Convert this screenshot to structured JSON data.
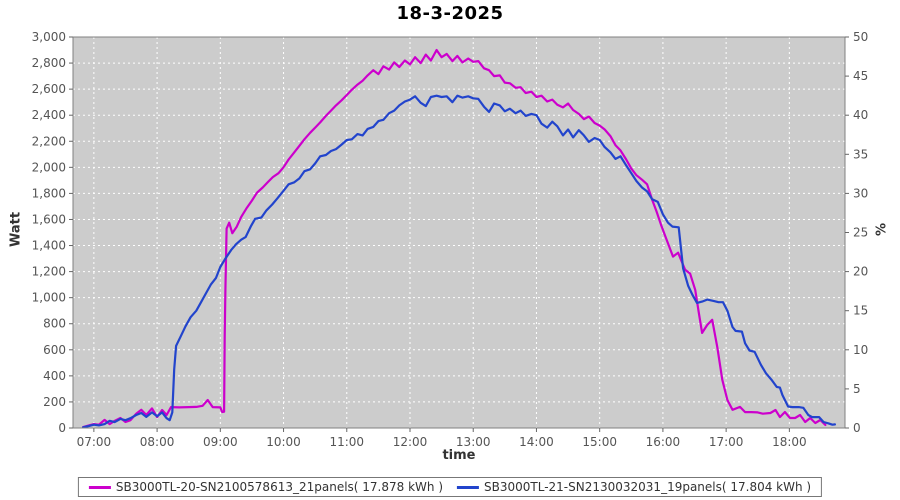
{
  "page": {
    "title": "18-3-2025"
  },
  "chart_data": {
    "type": "line",
    "title": "18-3-2025",
    "xlabel": "time",
    "ylabel_left": "Watt",
    "ylabel_right": "%",
    "xlim_hours": [
      6.67,
      18.88
    ],
    "ylim_left": [
      0,
      3000
    ],
    "ylim_right": [
      0,
      50
    ],
    "y_left_tick_step": 200,
    "y_right_tick_step": 5,
    "grid": true,
    "legend_position": "bottom",
    "plot_bg": "#cccccc",
    "grid_color": "#ffffff",
    "border_color": "#808080",
    "tick_color": "#666666",
    "tick_label_color": "#555555",
    "x_ticks": [
      {
        "hour": 7,
        "label": "07:00"
      },
      {
        "hour": 8,
        "label": "08:00"
      },
      {
        "hour": 9,
        "label": "09:00"
      },
      {
        "hour": 10,
        "label": "10:00"
      },
      {
        "hour": 11,
        "label": "11:00"
      },
      {
        "hour": 12,
        "label": "12:00"
      },
      {
        "hour": 13,
        "label": "13:00"
      },
      {
        "hour": 14,
        "label": "14:00"
      },
      {
        "hour": 15,
        "label": "15:00"
      },
      {
        "hour": 16,
        "label": "16:00"
      },
      {
        "hour": 17,
        "label": "17:00"
      },
      {
        "hour": 18,
        "label": "18:00"
      }
    ],
    "series": [
      {
        "name": "SB3000TL-20-SN2100578613_21panels( 17.878 kWh )",
        "color": "#cc00cc",
        "points": [
          [
            6.83,
            8
          ],
          [
            6.92,
            20
          ],
          [
            7.0,
            30
          ],
          [
            7.08,
            25
          ],
          [
            7.17,
            62
          ],
          [
            7.25,
            30
          ],
          [
            7.33,
            55
          ],
          [
            7.42,
            77
          ],
          [
            7.5,
            46
          ],
          [
            7.58,
            60
          ],
          [
            7.67,
            110
          ],
          [
            7.75,
            140
          ],
          [
            7.83,
            100
          ],
          [
            7.92,
            150
          ],
          [
            8.0,
            84
          ],
          [
            8.08,
            138
          ],
          [
            8.15,
            100
          ],
          [
            8.22,
            160
          ],
          [
            8.35,
            158
          ],
          [
            8.5,
            160
          ],
          [
            8.62,
            162
          ],
          [
            8.72,
            170
          ],
          [
            8.8,
            215
          ],
          [
            8.88,
            160
          ],
          [
            9.0,
            158
          ],
          [
            9.03,
            123
          ],
          [
            9.06,
            125
          ],
          [
            9.07,
            700
          ],
          [
            9.08,
            1060
          ],
          [
            9.1,
            1530
          ],
          [
            9.14,
            1575
          ],
          [
            9.19,
            1495
          ],
          [
            9.26,
            1545
          ],
          [
            9.33,
            1620
          ],
          [
            9.42,
            1690
          ],
          [
            9.5,
            1745
          ],
          [
            9.58,
            1805
          ],
          [
            9.67,
            1845
          ],
          [
            9.75,
            1885
          ],
          [
            9.83,
            1925
          ],
          [
            9.92,
            1955
          ],
          [
            10.0,
            2000
          ],
          [
            10.08,
            2060
          ],
          [
            10.17,
            2115
          ],
          [
            10.25,
            2165
          ],
          [
            10.33,
            2215
          ],
          [
            10.42,
            2265
          ],
          [
            10.5,
            2305
          ],
          [
            10.58,
            2345
          ],
          [
            10.67,
            2395
          ],
          [
            10.75,
            2435
          ],
          [
            10.83,
            2475
          ],
          [
            10.92,
            2515
          ],
          [
            11.0,
            2555
          ],
          [
            11.08,
            2595
          ],
          [
            11.17,
            2635
          ],
          [
            11.25,
            2665
          ],
          [
            11.33,
            2705
          ],
          [
            11.42,
            2745
          ],
          [
            11.5,
            2715
          ],
          [
            11.58,
            2775
          ],
          [
            11.67,
            2750
          ],
          [
            11.75,
            2805
          ],
          [
            11.83,
            2770
          ],
          [
            11.92,
            2820
          ],
          [
            12.0,
            2790
          ],
          [
            12.08,
            2845
          ],
          [
            12.17,
            2800
          ],
          [
            12.25,
            2865
          ],
          [
            12.33,
            2820
          ],
          [
            12.42,
            2900
          ],
          [
            12.5,
            2845
          ],
          [
            12.58,
            2870
          ],
          [
            12.67,
            2815
          ],
          [
            12.75,
            2855
          ],
          [
            12.83,
            2805
          ],
          [
            12.92,
            2835
          ],
          [
            13.0,
            2810
          ],
          [
            13.08,
            2815
          ],
          [
            13.17,
            2760
          ],
          [
            13.25,
            2745
          ],
          [
            13.33,
            2700
          ],
          [
            13.42,
            2705
          ],
          [
            13.5,
            2650
          ],
          [
            13.58,
            2645
          ],
          [
            13.67,
            2610
          ],
          [
            13.75,
            2615
          ],
          [
            13.83,
            2570
          ],
          [
            13.92,
            2580
          ],
          [
            14.0,
            2540
          ],
          [
            14.08,
            2550
          ],
          [
            14.17,
            2505
          ],
          [
            14.25,
            2520
          ],
          [
            14.33,
            2480
          ],
          [
            14.42,
            2460
          ],
          [
            14.5,
            2490
          ],
          [
            14.58,
            2440
          ],
          [
            14.67,
            2410
          ],
          [
            14.75,
            2370
          ],
          [
            14.83,
            2390
          ],
          [
            14.92,
            2340
          ],
          [
            15.0,
            2320
          ],
          [
            15.08,
            2290
          ],
          [
            15.17,
            2240
          ],
          [
            15.25,
            2170
          ],
          [
            15.33,
            2130
          ],
          [
            15.42,
            2060
          ],
          [
            15.5,
            1990
          ],
          [
            15.58,
            1940
          ],
          [
            15.67,
            1905
          ],
          [
            15.75,
            1870
          ],
          [
            15.83,
            1750
          ],
          [
            15.9,
            1660
          ],
          [
            15.97,
            1560
          ],
          [
            16.05,
            1455
          ],
          [
            16.16,
            1315
          ],
          [
            16.24,
            1345
          ],
          [
            16.35,
            1215
          ],
          [
            16.43,
            1185
          ],
          [
            16.51,
            1060
          ],
          [
            16.57,
            880
          ],
          [
            16.62,
            730
          ],
          [
            16.7,
            790
          ],
          [
            16.78,
            830
          ],
          [
            16.86,
            620
          ],
          [
            16.94,
            370
          ],
          [
            17.02,
            215
          ],
          [
            17.1,
            140
          ],
          [
            17.22,
            162
          ],
          [
            17.3,
            122
          ],
          [
            17.4,
            122
          ],
          [
            17.5,
            120
          ],
          [
            17.58,
            110
          ],
          [
            17.7,
            115
          ],
          [
            17.78,
            138
          ],
          [
            17.85,
            84
          ],
          [
            17.93,
            123
          ],
          [
            18.01,
            77
          ],
          [
            18.09,
            77
          ],
          [
            18.17,
            100
          ],
          [
            18.25,
            46
          ],
          [
            18.33,
            77
          ],
          [
            18.41,
            38
          ],
          [
            18.49,
            61
          ],
          [
            18.57,
            23
          ]
        ]
      },
      {
        "name": "SB3000TL-21-SN2130032031_19panels( 17.804 kWh )",
        "color": "#2244cc",
        "points": [
          [
            6.83,
            5
          ],
          [
            6.92,
            15
          ],
          [
            7.0,
            25
          ],
          [
            7.08,
            20
          ],
          [
            7.17,
            30
          ],
          [
            7.25,
            55
          ],
          [
            7.33,
            45
          ],
          [
            7.42,
            70
          ],
          [
            7.5,
            60
          ],
          [
            7.58,
            75
          ],
          [
            7.67,
            100
          ],
          [
            7.75,
            115
          ],
          [
            7.83,
            85
          ],
          [
            7.92,
            120
          ],
          [
            8.0,
            90
          ],
          [
            8.08,
            120
          ],
          [
            8.15,
            75
          ],
          [
            8.2,
            60
          ],
          [
            8.24,
            120
          ],
          [
            8.27,
            450
          ],
          [
            8.3,
            630
          ],
          [
            8.37,
            700
          ],
          [
            8.45,
            780
          ],
          [
            8.53,
            850
          ],
          [
            8.62,
            900
          ],
          [
            8.7,
            970
          ],
          [
            8.78,
            1040
          ],
          [
            8.85,
            1100
          ],
          [
            8.93,
            1150
          ],
          [
            9.0,
            1235
          ],
          [
            9.08,
            1300
          ],
          [
            9.17,
            1365
          ],
          [
            9.25,
            1410
          ],
          [
            9.33,
            1445
          ],
          [
            9.4,
            1465
          ],
          [
            9.48,
            1545
          ],
          [
            9.55,
            1605
          ],
          [
            9.65,
            1615
          ],
          [
            9.73,
            1670
          ],
          [
            9.82,
            1715
          ],
          [
            9.9,
            1760
          ],
          [
            10.0,
            1820
          ],
          [
            10.08,
            1870
          ],
          [
            10.17,
            1885
          ],
          [
            10.25,
            1915
          ],
          [
            10.33,
            1970
          ],
          [
            10.42,
            1985
          ],
          [
            10.5,
            2030
          ],
          [
            10.58,
            2085
          ],
          [
            10.67,
            2095
          ],
          [
            10.75,
            2125
          ],
          [
            10.83,
            2140
          ],
          [
            10.92,
            2175
          ],
          [
            11.0,
            2210
          ],
          [
            11.08,
            2215
          ],
          [
            11.17,
            2255
          ],
          [
            11.25,
            2245
          ],
          [
            11.33,
            2295
          ],
          [
            11.42,
            2310
          ],
          [
            11.5,
            2355
          ],
          [
            11.58,
            2365
          ],
          [
            11.67,
            2415
          ],
          [
            11.75,
            2435
          ],
          [
            11.83,
            2475
          ],
          [
            11.92,
            2505
          ],
          [
            12.0,
            2520
          ],
          [
            12.08,
            2545
          ],
          [
            12.17,
            2495
          ],
          [
            12.25,
            2470
          ],
          [
            12.33,
            2540
          ],
          [
            12.42,
            2550
          ],
          [
            12.5,
            2540
          ],
          [
            12.58,
            2545
          ],
          [
            12.67,
            2500
          ],
          [
            12.75,
            2550
          ],
          [
            12.83,
            2535
          ],
          [
            12.92,
            2545
          ],
          [
            13.0,
            2530
          ],
          [
            13.08,
            2525
          ],
          [
            13.17,
            2465
          ],
          [
            13.25,
            2425
          ],
          [
            13.33,
            2490
          ],
          [
            13.42,
            2475
          ],
          [
            13.5,
            2430
          ],
          [
            13.58,
            2450
          ],
          [
            13.67,
            2415
          ],
          [
            13.75,
            2435
          ],
          [
            13.83,
            2395
          ],
          [
            13.92,
            2410
          ],
          [
            14.0,
            2400
          ],
          [
            14.08,
            2335
          ],
          [
            14.17,
            2305
          ],
          [
            14.25,
            2350
          ],
          [
            14.33,
            2315
          ],
          [
            14.42,
            2245
          ],
          [
            14.5,
            2290
          ],
          [
            14.58,
            2230
          ],
          [
            14.67,
            2285
          ],
          [
            14.75,
            2245
          ],
          [
            14.83,
            2195
          ],
          [
            14.92,
            2225
          ],
          [
            15.0,
            2210
          ],
          [
            15.08,
            2155
          ],
          [
            15.17,
            2115
          ],
          [
            15.25,
            2065
          ],
          [
            15.33,
            2085
          ],
          [
            15.42,
            2015
          ],
          [
            15.5,
            1955
          ],
          [
            15.58,
            1895
          ],
          [
            15.67,
            1845
          ],
          [
            15.75,
            1815
          ],
          [
            15.83,
            1755
          ],
          [
            15.92,
            1735
          ],
          [
            16.0,
            1640
          ],
          [
            16.08,
            1575
          ],
          [
            16.15,
            1545
          ],
          [
            16.25,
            1540
          ],
          [
            16.32,
            1225
          ],
          [
            16.4,
            1090
          ],
          [
            16.47,
            1020
          ],
          [
            16.54,
            960
          ],
          [
            16.62,
            970
          ],
          [
            16.7,
            985
          ],
          [
            16.8,
            975
          ],
          [
            16.88,
            965
          ],
          [
            16.95,
            965
          ],
          [
            17.02,
            900
          ],
          [
            17.1,
            775
          ],
          [
            17.15,
            745
          ],
          [
            17.25,
            740
          ],
          [
            17.3,
            650
          ],
          [
            17.37,
            595
          ],
          [
            17.45,
            585
          ],
          [
            17.55,
            485
          ],
          [
            17.63,
            420
          ],
          [
            17.72,
            368
          ],
          [
            17.8,
            315
          ],
          [
            17.85,
            310
          ],
          [
            17.89,
            253
          ],
          [
            17.98,
            165
          ],
          [
            18.05,
            160
          ],
          [
            18.15,
            160
          ],
          [
            18.22,
            155
          ],
          [
            18.3,
            100
          ],
          [
            18.36,
            84
          ],
          [
            18.47,
            84
          ],
          [
            18.54,
            46
          ],
          [
            18.62,
            35
          ],
          [
            18.68,
            25
          ],
          [
            18.72,
            28
          ]
        ]
      }
    ]
  }
}
